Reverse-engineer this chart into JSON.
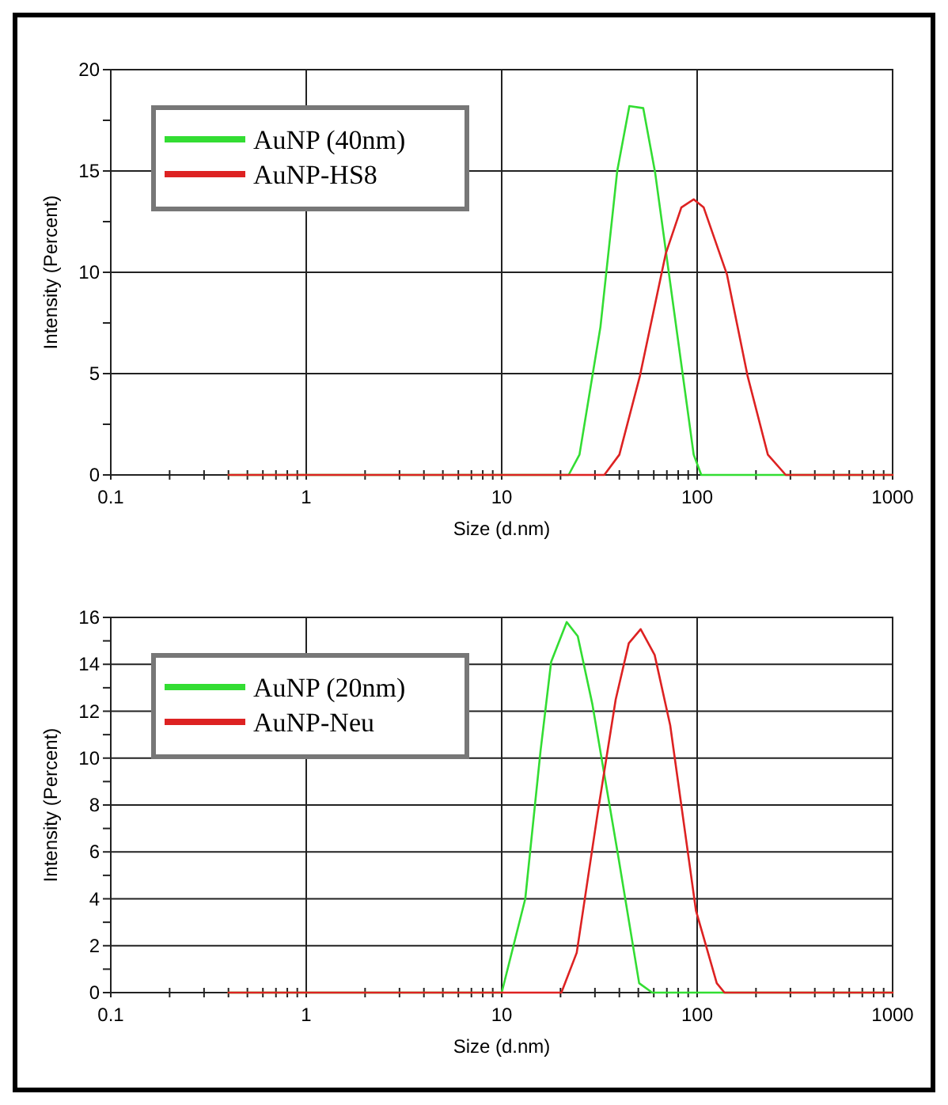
{
  "chart_data": [
    {
      "type": "line",
      "xlabel": "Size (d.nm)",
      "ylabel": "Intensity (Percent)",
      "log": "x",
      "grid": true,
      "legend": "top left",
      "xlim": [
        0.1,
        1000
      ],
      "ylim": [
        0,
        20
      ],
      "xticks": [
        0.1,
        {
          "value": 0.2,
          "label": null
        },
        {
          "value": 0.3,
          "label": null
        },
        {
          "value": 0.4,
          "label": null
        },
        {
          "value": 0.5,
          "label": null
        },
        {
          "value": 0.6,
          "label": null
        },
        {
          "value": 0.7,
          "label": null
        },
        {
          "value": 0.8,
          "label": null
        },
        {
          "value": 0.9,
          "label": null
        },
        1,
        {
          "value": 2,
          "label": null
        },
        {
          "value": 3,
          "label": null
        },
        {
          "value": 4,
          "label": null
        },
        {
          "value": 5,
          "label": null
        },
        {
          "value": 6,
          "label": null
        },
        {
          "value": 7,
          "label": null
        },
        {
          "value": 8,
          "label": null
        },
        {
          "value": 9,
          "label": null
        },
        10,
        {
          "value": 20,
          "label": null
        },
        {
          "value": 30,
          "label": null
        },
        {
          "value": 40,
          "label": null
        },
        {
          "value": 50,
          "label": null
        },
        {
          "value": 60,
          "label": null
        },
        {
          "value": 70,
          "label": null
        },
        {
          "value": 80,
          "label": null
        },
        {
          "value": 90,
          "label": null
        },
        100,
        {
          "value": 200,
          "label": null
        },
        {
          "value": 300,
          "label": null
        },
        {
          "value": 400,
          "label": null
        },
        {
          "value": 500,
          "label": null
        },
        {
          "value": 600,
          "label": null
        },
        {
          "value": 700,
          "label": null
        },
        {
          "value": 800,
          "label": null
        },
        {
          "value": 900,
          "label": null
        },
        1000
      ],
      "yticks": [
        0,
        {
          "value": 2.5,
          "label": null
        },
        5,
        {
          "value": 7.5,
          "label": null
        },
        10,
        {
          "value": 12.5,
          "label": null
        },
        15,
        {
          "value": 17.5,
          "label": null
        },
        20
      ],
      "series": [
        {
          "name": "AuNP (40nm)",
          "color": "#33dd33",
          "x": [
            0.4,
            22,
            25,
            32,
            39,
            45,
            53,
            61,
            96,
            105,
            1000
          ],
          "values": [
            0,
            0,
            1,
            7.3,
            15,
            18.2,
            18.1,
            14.9,
            1,
            0,
            0
          ]
        },
        {
          "name": "AuNP-HS8",
          "color": "#dd2222",
          "x": [
            0.4,
            33.5,
            40,
            51,
            69,
            83,
            96,
            108,
            142,
            181,
            230,
            284,
            1000
          ],
          "values": [
            0,
            0,
            1,
            4.9,
            10.9,
            13.2,
            13.6,
            13.2,
            9.9,
            4.9,
            1,
            0,
            0
          ]
        }
      ]
    },
    {
      "type": "line",
      "xlabel": "Size (d.nm)",
      "ylabel": "Intensity (Percent)",
      "log": "x",
      "grid": true,
      "legend": "top left",
      "xlim": [
        0.1,
        1000
      ],
      "ylim": [
        0,
        16
      ],
      "xticks": [
        0.1,
        {
          "value": 0.2,
          "label": null
        },
        {
          "value": 0.3,
          "label": null
        },
        {
          "value": 0.4,
          "label": null
        },
        {
          "value": 0.5,
          "label": null
        },
        {
          "value": 0.6,
          "label": null
        },
        {
          "value": 0.7,
          "label": null
        },
        {
          "value": 0.8,
          "label": null
        },
        {
          "value": 0.9,
          "label": null
        },
        1,
        {
          "value": 2,
          "label": null
        },
        {
          "value": 3,
          "label": null
        },
        {
          "value": 4,
          "label": null
        },
        {
          "value": 5,
          "label": null
        },
        {
          "value": 6,
          "label": null
        },
        {
          "value": 7,
          "label": null
        },
        {
          "value": 8,
          "label": null
        },
        {
          "value": 9,
          "label": null
        },
        10,
        {
          "value": 20,
          "label": null
        },
        {
          "value": 30,
          "label": null
        },
        {
          "value": 40,
          "label": null
        },
        {
          "value": 50,
          "label": null
        },
        {
          "value": 60,
          "label": null
        },
        {
          "value": 70,
          "label": null
        },
        {
          "value": 80,
          "label": null
        },
        {
          "value": 90,
          "label": null
        },
        100,
        {
          "value": 200,
          "label": null
        },
        {
          "value": 300,
          "label": null
        },
        {
          "value": 400,
          "label": null
        },
        {
          "value": 500,
          "label": null
        },
        {
          "value": 600,
          "label": null
        },
        {
          "value": 700,
          "label": null
        },
        {
          "value": 800,
          "label": null
        },
        {
          "value": 900,
          "label": null
        },
        1000
      ],
      "yticks": [
        0,
        {
          "value": 1,
          "label": null
        },
        2,
        {
          "value": 3,
          "label": null
        },
        4,
        {
          "value": 5,
          "label": null
        },
        6,
        {
          "value": 7,
          "label": null
        },
        8,
        {
          "value": 9,
          "label": null
        },
        10,
        {
          "value": 11,
          "label": null
        },
        12,
        {
          "value": 13,
          "label": null
        },
        14,
        {
          "value": 15,
          "label": null
        },
        16
      ],
      "series": [
        {
          "name": "AuNP (20nm)",
          "color": "#33dd33",
          "x": [
            0.4,
            10,
            13.2,
            15.8,
            17.9,
            21.5,
            24.5,
            29.1,
            39.5,
            50.5,
            58.9,
            1000
          ],
          "values": [
            0,
            0,
            4,
            10.3,
            14.1,
            15.8,
            15.2,
            12.3,
            5.8,
            0.4,
            0,
            0
          ]
        },
        {
          "name": "AuNP-Neu",
          "color": "#dd2222",
          "x": [
            0.4,
            20.2,
            24.2,
            30.9,
            38.3,
            44.7,
            51.4,
            60.6,
            72.8,
            98.6,
            126,
            138,
            1000
          ],
          "values": [
            0,
            0,
            1.7,
            7.6,
            12.5,
            14.9,
            15.5,
            14.4,
            11.4,
            3.5,
            0.4,
            0,
            0
          ]
        }
      ]
    }
  ]
}
